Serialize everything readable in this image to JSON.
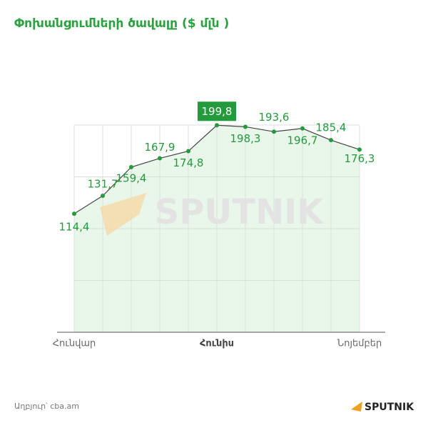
{
  "chart_data": {
    "type": "line",
    "title": "Փոխանցումների ծավալը ($ մլն )",
    "categories": [
      "Հունվար",
      null,
      null,
      null,
      null,
      "Հունիս",
      null,
      null,
      null,
      null,
      "Նոյեմբեր"
    ],
    "series": [
      {
        "color": "#239b3c",
        "values": [
          114.4,
          131.7,
          159.4,
          167.9,
          174.8,
          199.8,
          198.3,
          193.6,
          196.7,
          185.4,
          176.3
        ],
        "value_labels": [
          "114,4",
          "131,7",
          "159,4",
          "167,9",
          "174,8",
          "199,8",
          "198,3",
          "193,6",
          "196,7",
          "185,4",
          "176,3"
        ]
      }
    ],
    "ylim": [
      0,
      200
    ],
    "grid": true,
    "watermark": "SPUTNIK",
    "source": "Աղբյուր՝ cba.am",
    "logo": "SPUTNIK"
  }
}
